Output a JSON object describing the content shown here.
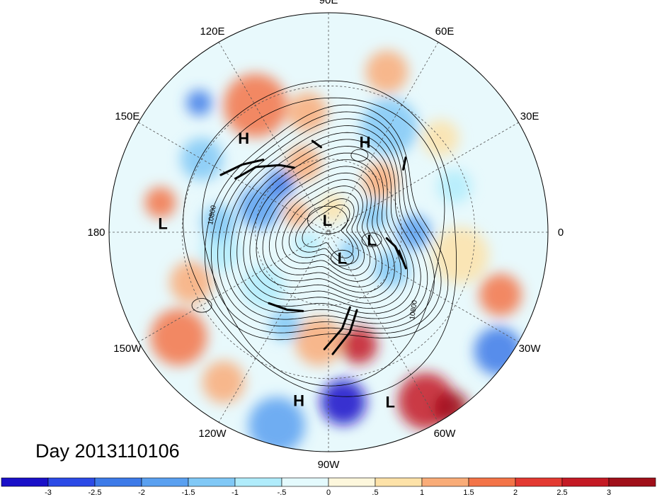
{
  "title": "Day 2013110106",
  "longitude_labels": [
    {
      "id": "lon-90e",
      "text": "90E",
      "lon": 90
    },
    {
      "id": "lon-60e",
      "text": "60E",
      "lon": 60
    },
    {
      "id": "lon-30e",
      "text": "30E",
      "lon": 30
    },
    {
      "id": "lon-0",
      "text": "0",
      "lon": 0
    },
    {
      "id": "lon-30w",
      "text": "30W",
      "lon": -30
    },
    {
      "id": "lon-60w",
      "text": "60W",
      "lon": -60
    },
    {
      "id": "lon-90w",
      "text": "90W",
      "lon": -90
    },
    {
      "id": "lon-120w",
      "text": "120W",
      "lon": -120
    },
    {
      "id": "lon-150w",
      "text": "150W",
      "lon": -150
    },
    {
      "id": "lon-180",
      "text": "180",
      "lon": 180
    },
    {
      "id": "lon-150e",
      "text": "150E",
      "lon": 150
    },
    {
      "id": "lon-120e",
      "text": "120E",
      "lon": 120
    }
  ],
  "pressure_centers": [
    {
      "type": "H",
      "lon": 68,
      "lat": 50
    },
    {
      "type": "H",
      "lon": 132,
      "lat": 38
    },
    {
      "type": "L",
      "lon": 177,
      "lat": 22
    },
    {
      "type": "L",
      "lon": 95,
      "lat": 85
    },
    {
      "type": "L",
      "lon": -10,
      "lat": 72
    },
    {
      "type": "L",
      "lon": -62,
      "lat": 78
    },
    {
      "type": "H",
      "lon": -100,
      "lat": 20
    },
    {
      "type": "L",
      "lon": -70,
      "lat": 16
    }
  ],
  "contour_labels": [
    "10800",
    "10800"
  ],
  "colorbar": {
    "ticks": [
      "-3",
      "-2.5",
      "-2",
      "-1.5",
      "-1",
      "-.5",
      "0",
      ".5",
      "1",
      "1.5",
      "2",
      "2.5",
      "3"
    ],
    "colors": [
      "#1a10c8",
      "#2b4ae6",
      "#3d7ae8",
      "#5aa0f0",
      "#80c8f6",
      "#b0ecfb",
      "#e4fafd",
      "#fdf7dc",
      "#fde2a8",
      "#f9ac78",
      "#f37448",
      "#e33a32",
      "#c41a24",
      "#a0101a"
    ]
  },
  "field_blobs": [
    {
      "lon": 120,
      "lat": 30,
      "r": 45,
      "c": 10
    },
    {
      "lon": 100,
      "lat": 40,
      "r": 28,
      "c": 9
    },
    {
      "lon": 135,
      "lat": 15,
      "r": 18,
      "c": 2
    },
    {
      "lon": 170,
      "lat": 20,
      "r": 22,
      "c": 10
    },
    {
      "lon": 150,
      "lat": 30,
      "r": 30,
      "c": 4
    },
    {
      "lon": 60,
      "lat": 40,
      "r": 40,
      "c": 4
    },
    {
      "lon": 70,
      "lat": 20,
      "r": 30,
      "c": 9
    },
    {
      "lon": 40,
      "lat": 30,
      "r": 26,
      "c": 8
    },
    {
      "lon": 20,
      "lat": 35,
      "r": 24,
      "c": 5
    },
    {
      "lon": -10,
      "lat": 35,
      "r": 40,
      "c": 8
    },
    {
      "lon": -20,
      "lat": 15,
      "r": 30,
      "c": 10
    },
    {
      "lon": -35,
      "lat": 5,
      "r": 34,
      "c": 2
    },
    {
      "lon": -60,
      "lat": 10,
      "r": 40,
      "c": 12
    },
    {
      "lon": -55,
      "lat": 2,
      "r": 24,
      "c": 13
    },
    {
      "lon": -85,
      "lat": 20,
      "r": 32,
      "c": 0
    },
    {
      "lon": -105,
      "lat": 8,
      "r": 40,
      "c": 3
    },
    {
      "lon": -125,
      "lat": 15,
      "r": 30,
      "c": 9
    },
    {
      "lon": -145,
      "lat": 15,
      "r": 40,
      "c": 10
    },
    {
      "lon": -160,
      "lat": 30,
      "r": 30,
      "c": 9
    },
    {
      "lon": -170,
      "lat": 45,
      "r": 28,
      "c": 5
    },
    {
      "lon": 175,
      "lat": 45,
      "r": 25,
      "c": 4
    },
    {
      "lon": -95,
      "lat": 45,
      "r": 34,
      "c": 9
    },
    {
      "lon": -75,
      "lat": 42,
      "r": 26,
      "c": 12
    },
    {
      "lon": -115,
      "lat": 48,
      "r": 22,
      "c": 4
    },
    {
      "lon": -140,
      "lat": 55,
      "r": 30,
      "c": 5
    },
    {
      "lon": 160,
      "lat": 60,
      "r": 30,
      "c": 3
    },
    {
      "lon": 135,
      "lat": 62,
      "r": 20,
      "c": 2
    },
    {
      "lon": 110,
      "lat": 60,
      "r": 25,
      "c": 9
    },
    {
      "lon": 45,
      "lat": 60,
      "r": 25,
      "c": 9
    },
    {
      "lon": -30,
      "lat": 60,
      "r": 25,
      "c": 4
    },
    {
      "lon": 0,
      "lat": 55,
      "r": 24,
      "c": 3
    },
    {
      "lon": 80,
      "lat": 80,
      "r": 20,
      "c": 8
    },
    {
      "lon": -150,
      "lat": 80,
      "r": 18,
      "c": 5
    },
    {
      "lon": -40,
      "lat": 78,
      "r": 16,
      "c": 4
    },
    {
      "lon": 150,
      "lat": 75,
      "r": 18,
      "c": 9
    },
    {
      "lon": 20,
      "lat": 70,
      "r": 20,
      "c": 4
    }
  ]
}
